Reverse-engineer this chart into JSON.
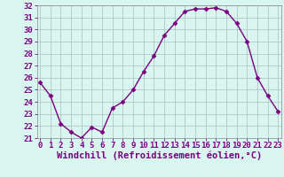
{
  "x": [
    0,
    1,
    2,
    3,
    4,
    5,
    6,
    7,
    8,
    9,
    10,
    11,
    12,
    13,
    14,
    15,
    16,
    17,
    18,
    19,
    20,
    21,
    22,
    23
  ],
  "y": [
    25.6,
    24.5,
    22.2,
    21.5,
    21.0,
    21.9,
    21.5,
    23.5,
    24.0,
    25.0,
    26.5,
    27.8,
    29.5,
    30.5,
    31.5,
    31.7,
    31.7,
    31.8,
    31.5,
    30.5,
    29.0,
    26.0,
    24.5,
    23.2
  ],
  "line_color": "#7b0080",
  "marker": "D",
  "markersize": 2.5,
  "linewidth": 1.0,
  "bg_color": "#d8f5f0",
  "grid_color": "#b0c8c8",
  "xlabel": "Windchill (Refroidissement éolien,°C)",
  "xlabel_color": "#7b0080",
  "xlabel_fontsize": 7.5,
  "tick_fontsize": 6.5,
  "tick_color": "#7b0080",
  "ylim": [
    21,
    32
  ],
  "yticks": [
    21,
    22,
    23,
    24,
    25,
    26,
    27,
    28,
    29,
    30,
    31,
    32
  ],
  "xticks": [
    0,
    1,
    2,
    3,
    4,
    5,
    6,
    7,
    8,
    9,
    10,
    11,
    12,
    13,
    14,
    15,
    16,
    17,
    18,
    19,
    20,
    21,
    22,
    23
  ],
  "xlim": [
    -0.3,
    23.3
  ]
}
